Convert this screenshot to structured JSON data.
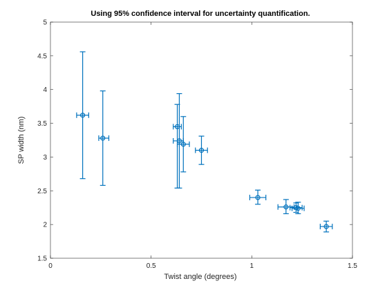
{
  "chart_data": {
    "type": "scatter",
    "title": "Using 95% confidence interval for uncertainty quantification.",
    "xlabel": "Twist angle (degrees)",
    "ylabel": "SP width (nm)",
    "xlim": [
      0,
      1.5
    ],
    "ylim": [
      1.5,
      5
    ],
    "x_ticks": [
      "0",
      "0.5",
      "1",
      "1.5"
    ],
    "y_ticks": [
      "1.5",
      "2",
      "2.5",
      "3",
      "3.5",
      "4",
      "4.5",
      "5"
    ],
    "x_tick_values": [
      0,
      0.5,
      1,
      1.5
    ],
    "y_tick_values": [
      1.5,
      2,
      2.5,
      3,
      3.5,
      4,
      4.5,
      5
    ],
    "grid": false,
    "box": true,
    "series_color": "#0072bd",
    "points": [
      {
        "x": 0.16,
        "y": 3.62,
        "x_low": 0.13,
        "x_high": 0.19,
        "y_low": 2.68,
        "y_high": 4.56
      },
      {
        "x": 0.26,
        "y": 3.28,
        "x_low": 0.24,
        "x_high": 0.29,
        "y_low": 2.58,
        "y_high": 3.98
      },
      {
        "x": 0.63,
        "y": 3.45,
        "x_low": 0.61,
        "x_high": 0.65,
        "y_low": 2.54,
        "y_high": 3.78
      },
      {
        "x": 0.64,
        "y": 3.24,
        "x_low": 0.61,
        "x_high": 0.66,
        "y_low": 2.54,
        "y_high": 3.94
      },
      {
        "x": 0.66,
        "y": 3.19,
        "x_low": 0.63,
        "x_high": 0.69,
        "y_low": 2.78,
        "y_high": 3.6
      },
      {
        "x": 0.75,
        "y": 3.1,
        "x_low": 0.72,
        "x_high": 0.78,
        "y_low": 2.89,
        "y_high": 3.31
      },
      {
        "x": 1.03,
        "y": 2.4,
        "x_low": 0.99,
        "x_high": 1.07,
        "y_low": 2.3,
        "y_high": 2.51
      },
      {
        "x": 1.17,
        "y": 2.26,
        "x_low": 1.13,
        "x_high": 1.21,
        "y_low": 2.16,
        "y_high": 2.37
      },
      {
        "x": 1.22,
        "y": 2.25,
        "x_low": 1.19,
        "x_high": 1.25,
        "y_low": 2.18,
        "y_high": 2.32
      },
      {
        "x": 1.23,
        "y": 2.24,
        "x_low": 1.2,
        "x_high": 1.26,
        "y_low": 2.16,
        "y_high": 2.33
      },
      {
        "x": 1.37,
        "y": 1.97,
        "x_low": 1.34,
        "x_high": 1.4,
        "y_low": 1.89,
        "y_high": 2.05
      }
    ]
  }
}
